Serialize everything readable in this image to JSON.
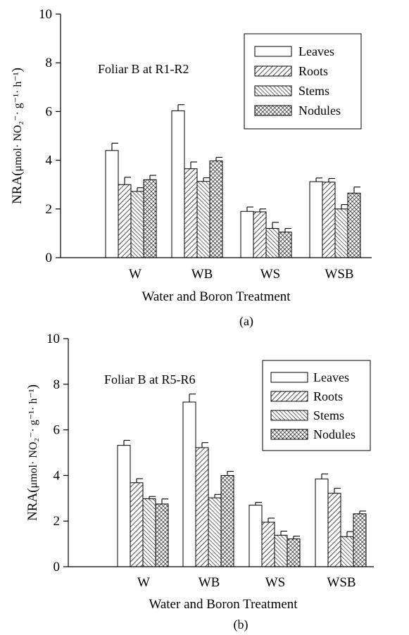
{
  "colors": {
    "bar_stroke": "#000000",
    "background": "#ffffff",
    "leaves_fill": "#ffffff"
  },
  "chart_data": [
    {
      "type": "bar",
      "panel_label": "(a)",
      "annotation": "Foliar B at R1-R2",
      "xlabel": "Water and Boron Treatment",
      "ylabel": "NRA",
      "ylabel_units": "μmol· NO₂⁻· g⁻¹· h⁻¹",
      "ylim": [
        0,
        10
      ],
      "yticks": [
        "0",
        "2",
        "4",
        "6",
        "8",
        "10"
      ],
      "grid": false,
      "legend_position": "top-right",
      "categories": [
        "W",
        "WB",
        "WS",
        "WSB"
      ],
      "series": [
        {
          "name": "Leaves",
          "pattern": "open",
          "values": [
            4.4,
            6.03,
            1.9,
            3.12
          ],
          "errors": [
            0.3,
            0.25,
            0.18,
            0.15
          ]
        },
        {
          "name": "Roots",
          "pattern": "diag-right",
          "values": [
            3.0,
            3.65,
            1.88,
            3.1
          ],
          "errors": [
            0.3,
            0.28,
            0.12,
            0.15
          ]
        },
        {
          "name": "Stems",
          "pattern": "diag-left",
          "values": [
            2.72,
            3.13,
            1.2,
            2.0
          ],
          "errors": [
            0.15,
            0.15,
            0.25,
            0.18
          ]
        },
        {
          "name": "Nodules",
          "pattern": "crosshatch",
          "values": [
            3.2,
            3.97,
            1.05,
            2.65
          ],
          "errors": [
            0.18,
            0.15,
            0.15,
            0.25
          ]
        }
      ]
    },
    {
      "type": "bar",
      "panel_label": "(b)",
      "annotation": "Foliar B at R5-R6",
      "xlabel": "Water and Boron Treatment",
      "ylabel": "NRA",
      "ylabel_units": "μmol· NO₂⁻· g⁻¹· h⁻¹",
      "ylim": [
        0,
        10
      ],
      "yticks": [
        "0",
        "2",
        "4",
        "6",
        "8",
        "10"
      ],
      "grid": false,
      "legend_position": "top-right",
      "categories": [
        "W",
        "WB",
        "WS",
        "WSB"
      ],
      "series": [
        {
          "name": "Leaves",
          "pattern": "open",
          "values": [
            5.32,
            7.22,
            2.7,
            3.85
          ],
          "errors": [
            0.22,
            0.35,
            0.12,
            0.22
          ]
        },
        {
          "name": "Roots",
          "pattern": "diag-right",
          "values": [
            3.68,
            5.22,
            1.95,
            3.22
          ],
          "errors": [
            0.18,
            0.22,
            0.18,
            0.22
          ]
        },
        {
          "name": "Stems",
          "pattern": "diag-left",
          "values": [
            2.98,
            3.02,
            1.38,
            1.32
          ],
          "errors": [
            0.1,
            0.15,
            0.18,
            0.22
          ]
        },
        {
          "name": "Nodules",
          "pattern": "crosshatch",
          "values": [
            2.75,
            4.0,
            1.22,
            2.32
          ],
          "errors": [
            0.22,
            0.18,
            0.12,
            0.12
          ]
        }
      ]
    }
  ]
}
